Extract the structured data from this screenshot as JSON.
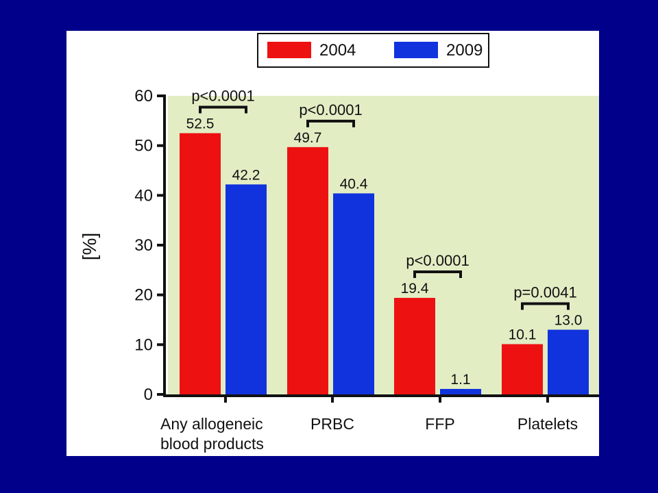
{
  "slide": {
    "background_color": "#00008b",
    "panel_color": "#ffffff"
  },
  "chart_data": {
    "type": "bar",
    "title": "",
    "xlabel": "",
    "ylabel": "[%]",
    "ylim": [
      0,
      60
    ],
    "yticks": [
      0,
      10,
      20,
      30,
      40,
      50,
      60
    ],
    "plot_background_color": "#e2edc4",
    "grid": false,
    "legend_position": "top-right",
    "categories": [
      [
        "Any allogeneic",
        "blood products"
      ],
      [
        "PRBC"
      ],
      [
        "FFP"
      ],
      [
        "Platelets"
      ]
    ],
    "series": [
      {
        "name": "2004",
        "color": "#ee1111",
        "values": [
          52.5,
          49.7,
          19.4,
          10.1
        ],
        "labels": [
          "52.5",
          "49.7",
          "19.4",
          "10.1"
        ]
      },
      {
        "name": "2009",
        "color": "#1133dd",
        "values": [
          42.2,
          40.4,
          1.1,
          13.0
        ],
        "labels": [
          "42.2",
          "40.4",
          "1.1",
          "13.0"
        ]
      }
    ],
    "significance": [
      "p<0.0001",
      "p<0.0001",
      "p<0.0001",
      "p=0.0041"
    ]
  }
}
